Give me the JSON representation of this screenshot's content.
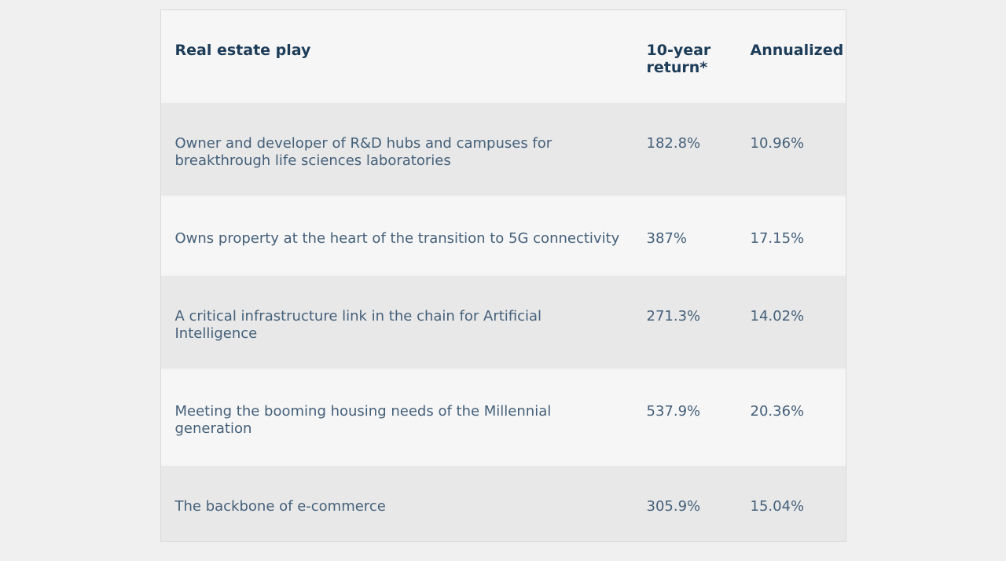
{
  "chart_data": {
    "type": "table",
    "title": "",
    "columns": [
      "Real estate play",
      "10-year return*",
      "Annualized"
    ],
    "rows": [
      {
        "play": "Owner and developer of R&D hubs and campuses for breakthrough life sciences laboratories",
        "ten_year_return": "182.8%",
        "annualized": "10.96%"
      },
      {
        "play": "Owns property at the heart of the transition to 5G connectivity",
        "ten_year_return": "387%",
        "annualized": "17.15%"
      },
      {
        "play": "A critical infrastructure link in the chain for Artificial Intelligence",
        "ten_year_return": "271.3%",
        "annualized": "14.02%"
      },
      {
        "play": "Meeting the booming housing needs of the Millennial generation",
        "ten_year_return": "537.9%",
        "annualized": "20.36%"
      },
      {
        "play": "The backbone of e-commerce",
        "ten_year_return": "305.9%",
        "annualized": "15.04%"
      }
    ],
    "layout": {
      "legend": "none",
      "grid": "alternating-row-shading"
    },
    "colors": {
      "page_bg": "#f0f0f0",
      "row_shade": "#e8e8e8",
      "row_light": "#f6f6f6",
      "separator": "#f4f4f4",
      "border": "#d9d9d9",
      "header_text": "#1c3c58",
      "body_text": "#44607a"
    }
  }
}
